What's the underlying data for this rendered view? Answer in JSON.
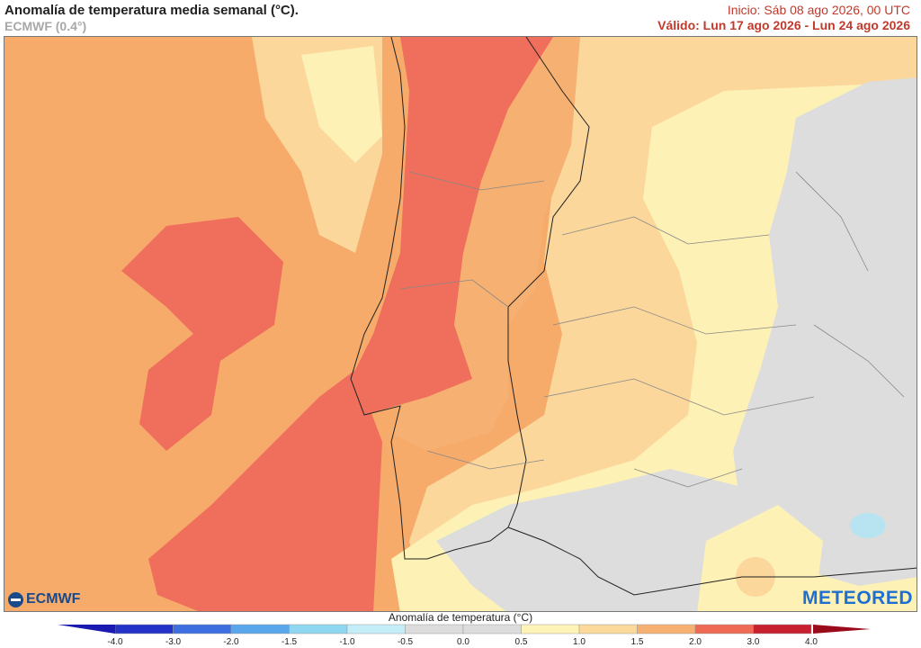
{
  "header": {
    "title": "Anomalía de temperatura media semanal (°C).",
    "model": "ECMWF (0.4°)",
    "init": "Inicio: Sáb 08 ago 2026, 00 UTC",
    "valid": "Válido: Lun 17 ago 2026 - Lun 24 ago 2026"
  },
  "logos": {
    "ecmwf": "ECMWF",
    "meteored": "METEORED"
  },
  "legend": {
    "title": "Anomalía de temperatura (°C)",
    "ticks": [
      "-4.0",
      "-3.0",
      "-2.0",
      "-1.5",
      "-1.0",
      "-0.5",
      "0.0",
      "0.5",
      "1.0",
      "1.5",
      "2.0",
      "3.0",
      "4.0"
    ],
    "colors": [
      "#2432c8",
      "#3d6fe0",
      "#5aa6ea",
      "#8fd6f0",
      "#c4eef7",
      "#dcdcdc",
      "#dcdcdc",
      "#fff4b8",
      "#fbd99b",
      "#f6b072",
      "#ee6a55",
      "#c8202e"
    ]
  },
  "map_colors": {
    "sea_base": "#f6ab6a",
    "warm_core": "#ef6e5c",
    "pale": "#fdf1b6",
    "light_orange": "#fbd79b",
    "neutral": "#dddddd",
    "cold": "#b8e4f2"
  }
}
